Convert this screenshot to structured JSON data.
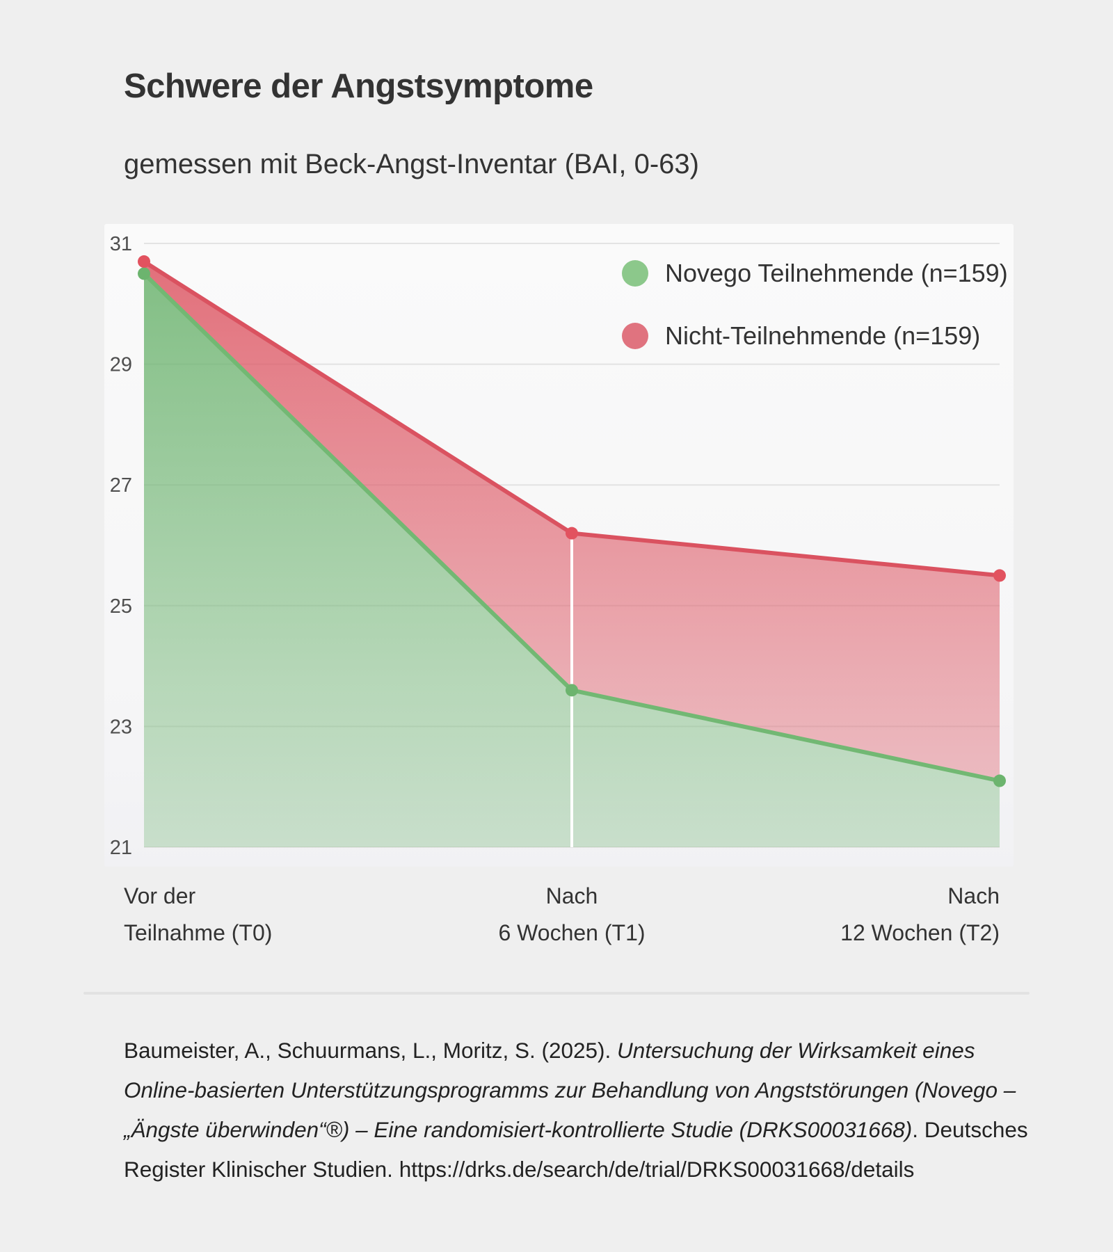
{
  "title": "Schwere der Angstsymptome",
  "subtitle": "gemessen mit Beck-Angst-Inventar (BAI, 0-63)",
  "legend": {
    "items": [
      {
        "label": "Novego Teilnehmende (n=159)",
        "color": "#8cc88b"
      },
      {
        "label": "Nicht-Teilnehmende (n=159)",
        "color": "#e0737f"
      }
    ]
  },
  "chart_data": {
    "type": "area",
    "categories": [
      "Vor der Teilnahme (T0)",
      "Nach 6 Wochen (T1)",
      "Nach 12 Wochen (T2)"
    ],
    "series": [
      {
        "name": "Novego Teilnehmende (n=159)",
        "values": [
          30.5,
          23.6,
          22.1
        ],
        "line_color": "#72b873",
        "dot_color": "#6cb46e",
        "fill_color": "105,178,108"
      },
      {
        "name": "Nicht-Teilnehmende (n=159)",
        "values": [
          30.7,
          26.2,
          25.5
        ],
        "line_color": "#da5260",
        "dot_color": "#e2525f",
        "fill_color": "221,85,98"
      }
    ],
    "title": "Schwere der Angstsymptome",
    "subtitle": "gemessen mit Beck-Angst-Inventar (BAI, 0-63)",
    "xlabel": "",
    "ylabel": "",
    "yticks": [
      31,
      29,
      27,
      25,
      23,
      21
    ],
    "ylim": [
      21,
      31
    ],
    "grid": true,
    "gridline_color": "#e3e3e3",
    "legend_position": "top-right",
    "t1_marker": {
      "at_category_index": 1,
      "color": "#ffffff"
    }
  },
  "x_axis": {
    "labels": [
      {
        "line1": "Vor der",
        "line2": "Teilnahme (T0)"
      },
      {
        "line1": "Nach",
        "line2": "6 Wochen (T1)"
      },
      {
        "line1": "Nach",
        "line2": "12 Wochen (T2)"
      }
    ]
  },
  "citation": {
    "lines": [
      [
        {
          "t": "Baumeister, A., Schuurmans, L., Moritz, S. (2025). ",
          "i": false
        },
        {
          "t": "Untersuchung der Wirksamkeit eines",
          "i": true
        }
      ],
      [
        {
          "t": "Online-basierten Unterstützungsprogramms zur Behandlung von Angststörungen (Novego –",
          "i": true
        }
      ],
      [
        {
          "t": "„Ängste überwinden“®) – Eine randomisiert-kontrollierte Studie (DRKS00031668)",
          "i": true
        },
        {
          "t": ". Deutsches",
          "i": false
        }
      ],
      [
        {
          "t": "Register Klinischer Studien. https://drks.de/search/de/trial/DRKS00031668/details",
          "i": false
        }
      ]
    ]
  }
}
